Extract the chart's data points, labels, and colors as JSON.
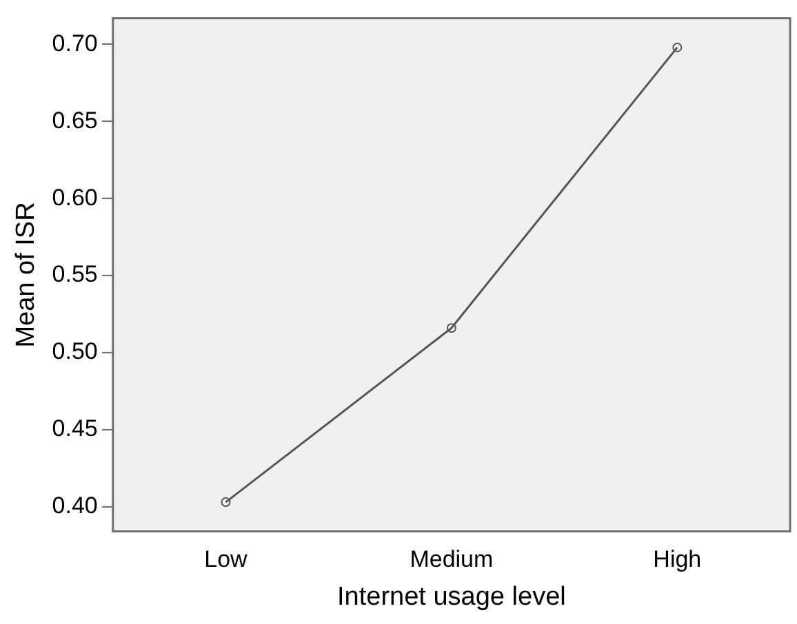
{
  "chart_data": {
    "type": "line",
    "xlabel": "Internet usage level",
    "ylabel": "Mean of ISR",
    "categories": [
      "Low",
      "Medium",
      "High"
    ],
    "series": [
      {
        "color": "#555555",
        "values": [
          0.403,
          0.516,
          0.698
        ]
      }
    ],
    "ylim": [
      0.384,
      0.717
    ],
    "yticks": [
      {
        "value": 0.4,
        "label": "0.40"
      },
      0.45,
      {
        "value": 0.5,
        "label": "0.50"
      },
      0.55,
      {
        "value": 0.6,
        "label": "0.60"
      },
      0.65,
      {
        "value": 0.7,
        "label": "0.70"
      }
    ],
    "grid": false,
    "legend": false,
    "marker": "circle",
    "line_style": "solid"
  }
}
